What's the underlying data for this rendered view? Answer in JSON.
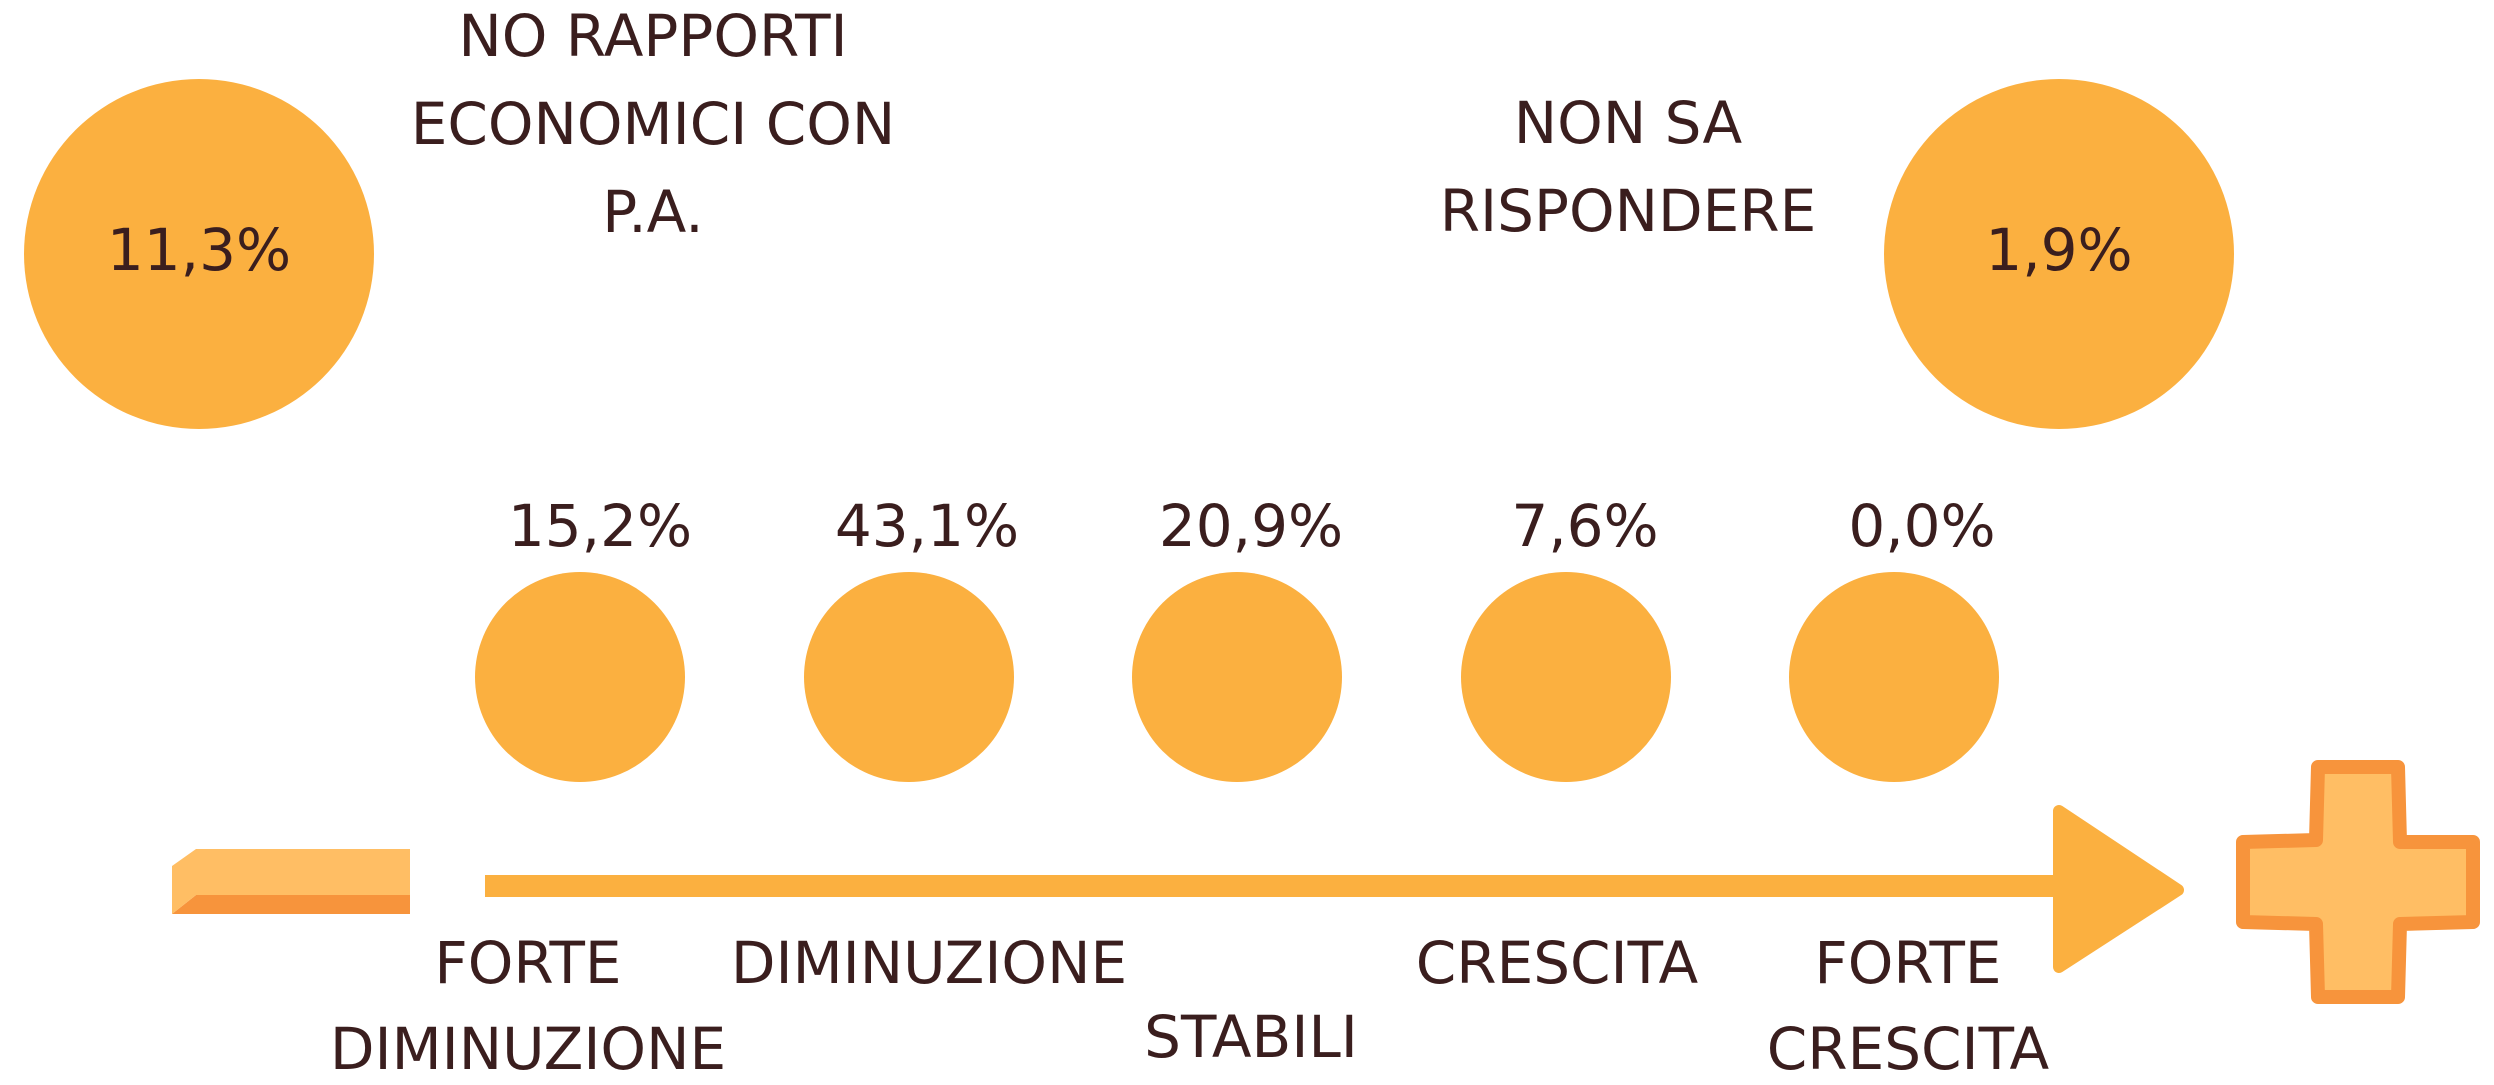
{
  "side_items": [
    {
      "label_lines": [
        "NO RAPPORTI",
        "ECONOMICI CON",
        "P.A."
      ],
      "value": "11,3%"
    },
    {
      "label_lines": [
        "NON SA",
        "RISPONDERE"
      ],
      "value": "1,9%"
    }
  ],
  "scale": [
    {
      "value": "15,2%",
      "label_lines": [
        "FORTE",
        "DIMINUZIONE"
      ]
    },
    {
      "value": "43,1%",
      "label_lines": [
        "DIMINUZIONE"
      ]
    },
    {
      "value": "20,9%",
      "label_lines": [
        "STABILI"
      ]
    },
    {
      "value": "7,6%",
      "label_lines": [
        "CRESCITA"
      ]
    },
    {
      "value": "0,0%",
      "label_lines": [
        "FORTE",
        "CRESCITA"
      ]
    }
  ]
}
